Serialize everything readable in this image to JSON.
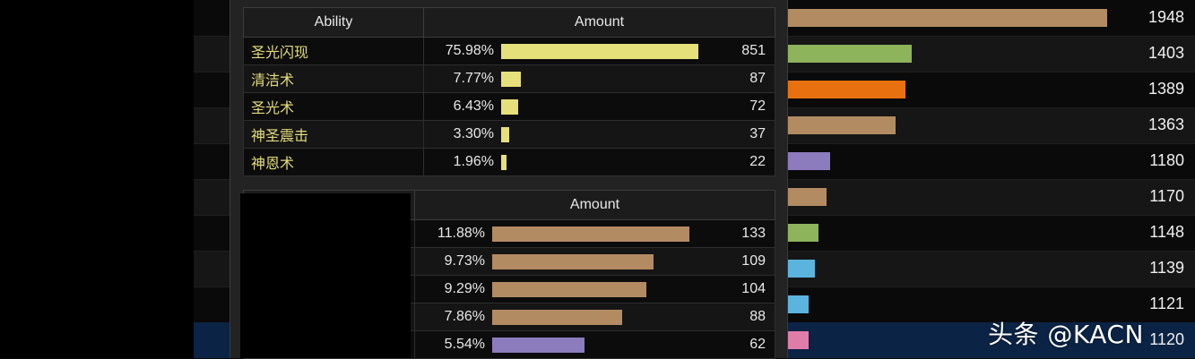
{
  "background_list": {
    "rows": [
      {
        "value": "1948",
        "color": "#b38b62",
        "fill": 1.0
      },
      {
        "value": "1403",
        "color": "#8db35b",
        "fill": 0.39
      },
      {
        "value": "1389",
        "color": "#e8700f",
        "fill": 0.37
      },
      {
        "value": "1363",
        "color": "#b38b62",
        "fill": 0.34
      },
      {
        "value": "1180",
        "color": "#8c7bbd",
        "fill": 0.135
      },
      {
        "value": "1170",
        "color": "#b38b62",
        "fill": 0.124
      },
      {
        "value": "1148",
        "color": "#8db35b",
        "fill": 0.099
      },
      {
        "value": "1139",
        "color": "#5ab4de",
        "fill": 0.088
      },
      {
        "value": "1121",
        "color": "#5ab4de",
        "fill": 0.068
      },
      {
        "value": "1120",
        "color": "#e07ca8",
        "fill": 0.068
      }
    ]
  },
  "tooltip": {
    "table1": {
      "headers": [
        "Ability",
        "Amount"
      ],
      "rows": [
        {
          "name": "圣光闪现",
          "pct": "75.98%",
          "count": "851",
          "fill": 1.0,
          "color": "#e6e07a"
        },
        {
          "name": "清洁术",
          "pct": "7.77%",
          "count": "87",
          "fill": 0.102,
          "color": "#e6e07a"
        },
        {
          "name": "圣光术",
          "pct": "6.43%",
          "count": "72",
          "fill": 0.085,
          "color": "#e6e07a"
        },
        {
          "name": "神圣震击",
          "pct": "3.30%",
          "count": "37",
          "fill": 0.043,
          "color": "#e6e07a"
        },
        {
          "name": "神恩术",
          "pct": "1.96%",
          "count": "22",
          "fill": 0.026,
          "color": "#e6e07a"
        }
      ]
    },
    "table2": {
      "headers": [
        "",
        "Amount"
      ],
      "rows": [
        {
          "name": "",
          "pct": "11.88%",
          "count": "133",
          "fill": 1.0,
          "color": "#b38b62"
        },
        {
          "name": "",
          "pct": "9.73%",
          "count": "109",
          "fill": 0.82,
          "color": "#b38b62"
        },
        {
          "name": "",
          "pct": "9.29%",
          "count": "104",
          "fill": 0.78,
          "color": "#b38b62"
        },
        {
          "name": "",
          "pct": "7.86%",
          "count": "88",
          "fill": 0.66,
          "color": "#b38b62"
        },
        {
          "name": "",
          "pct": "5.54%",
          "count": "62",
          "fill": 0.466,
          "color": "#8c7bbd"
        }
      ]
    }
  },
  "watermark": "头条 @KACN"
}
